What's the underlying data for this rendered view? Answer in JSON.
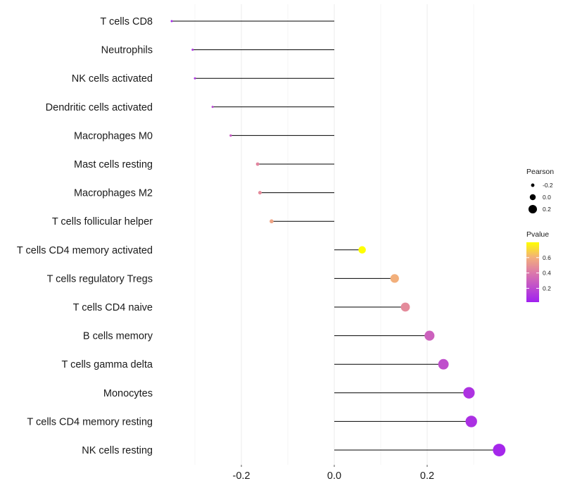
{
  "chart_data": {
    "type": "lollipop",
    "title": "",
    "xlabel": "",
    "ylabel": "",
    "xlim": [
      -0.36,
      0.36
    ],
    "x_ticks": [
      -0.2,
      0.0,
      0.2
    ],
    "x_tick_labels": [
      "-0.2",
      "0.0",
      "0.2"
    ],
    "grid": true,
    "categories": [
      "T cells CD8",
      "Neutrophils",
      "NK cells activated",
      "Dendritic cells activated",
      "Macrophages M0",
      "Mast cells resting",
      "Macrophages M2",
      "T cells follicular helper",
      "T cells CD4 memory activated",
      "T cells regulatory  Tregs ",
      "T cells CD4 naive",
      "B cells memory",
      "T cells gamma delta",
      "Monocytes",
      "T cells CD4 memory resting",
      "NK cells resting"
    ],
    "pearson": [
      -0.35,
      -0.305,
      -0.3,
      -0.262,
      -0.223,
      -0.165,
      -0.16,
      -0.135,
      0.06,
      0.13,
      0.153,
      0.205,
      0.235,
      0.29,
      0.295,
      0.355
    ],
    "pvalue": [
      0.05,
      0.1,
      0.11,
      0.18,
      0.27,
      0.45,
      0.47,
      0.56,
      0.82,
      0.6,
      0.47,
      0.3,
      0.22,
      0.1,
      0.09,
      0.05
    ],
    "legend": {
      "position": "right",
      "size_title": "Pearson",
      "size_breaks": [
        -0.2,
        0.0,
        0.2
      ],
      "size_labels": [
        "-0.2",
        "0.0",
        "0.2"
      ],
      "color_title": "Pvalue",
      "color_breaks": [
        0.6,
        0.4,
        0.2
      ],
      "color_labels": [
        "0.6",
        "0.4",
        "0.2"
      ],
      "color_range": [
        0.02,
        0.8
      ],
      "color_low": "#a020f0",
      "color_high": "#ffff00"
    }
  }
}
